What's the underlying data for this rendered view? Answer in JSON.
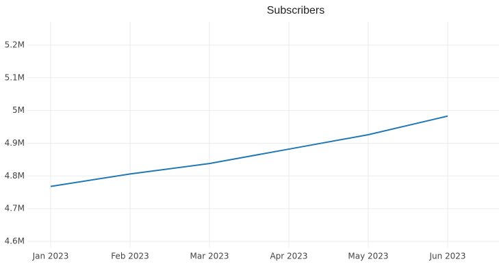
{
  "chart_data": {
    "type": "line",
    "title": "Subscribers",
    "x": [
      "2023-01",
      "2023-02",
      "2023-03",
      "2023-04",
      "2023-05",
      "2023-06"
    ],
    "xticks": [
      {
        "value": "2023-01",
        "label": "Jan 2023"
      },
      {
        "value": "2023-02",
        "label": "Feb 2023"
      },
      {
        "value": "2023-03",
        "label": "Mar 2023"
      },
      {
        "value": "2023-04",
        "label": "Apr 2023"
      },
      {
        "value": "2023-05",
        "label": "May 2023"
      },
      {
        "value": "2023-06",
        "label": "Jun 2023"
      }
    ],
    "series": [
      {
        "name": "Subscribers",
        "color": "#1f77b4",
        "values": [
          4768000,
          4806000,
          4838000,
          4882000,
          4926000,
          4983000
        ]
      }
    ],
    "ylim": [
      4579000,
      5271000
    ],
    "yticks": [
      {
        "value": 4600000,
        "label": "4.6M"
      },
      {
        "value": 4700000,
        "label": "4.7M"
      },
      {
        "value": 4800000,
        "label": "4.8M"
      },
      {
        "value": 4900000,
        "label": "4.9M"
      },
      {
        "value": 5000000,
        "label": "5M"
      },
      {
        "value": 5100000,
        "label": "5.1M"
      },
      {
        "value": 5200000,
        "label": "5.2M"
      }
    ],
    "grid": true
  }
}
